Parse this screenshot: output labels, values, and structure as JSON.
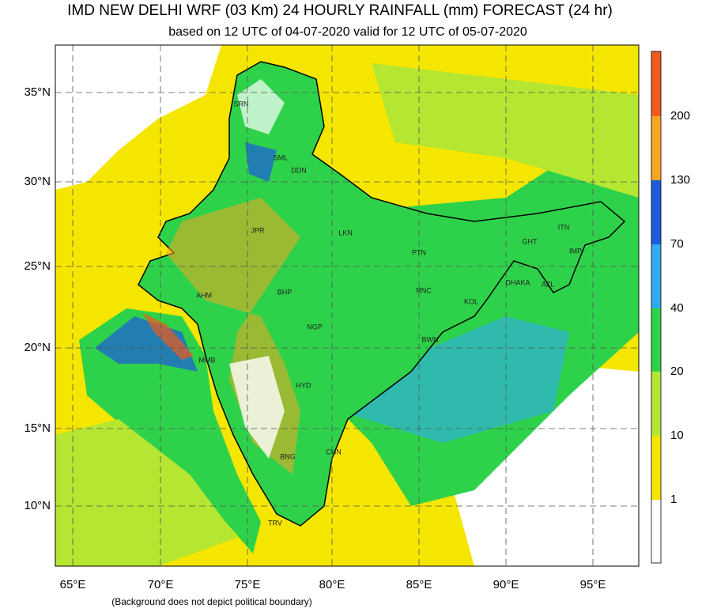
{
  "header": {
    "title": "IMD NEW DELHI  WRF (03 Km) 24 HOURLY RAINFALL (mm) FORECAST  (24 hr)",
    "subtitle": "based on 12 UTC of 04-07-2020 valid for 12 UTC of 05-07-2020"
  },
  "map": {
    "lat_labels": [
      "35°N",
      "30°N",
      "25°N",
      "20°N",
      "15°N",
      "10°N"
    ],
    "lon_labels": [
      "65°E",
      "70°E",
      "75°E",
      "80°E",
      "85°E",
      "90°E",
      "95°E"
    ],
    "places": [
      "SRN",
      "SML",
      "DDN",
      "JPR",
      "LKN",
      "PTN",
      "GHT",
      "ITN",
      "IMP",
      "AHM",
      "BHP",
      "RNC",
      "DHAKA",
      "AZL",
      "KOL",
      "NGP",
      "BWN",
      "MMB",
      "HYD",
      "BNG",
      "CHN",
      "TRV"
    ]
  },
  "colorbar": {
    "labels": [
      "200",
      "130",
      "70",
      "40",
      "20",
      "10",
      "1"
    ]
  },
  "footnote": "(Background does not depict political boundary)"
}
